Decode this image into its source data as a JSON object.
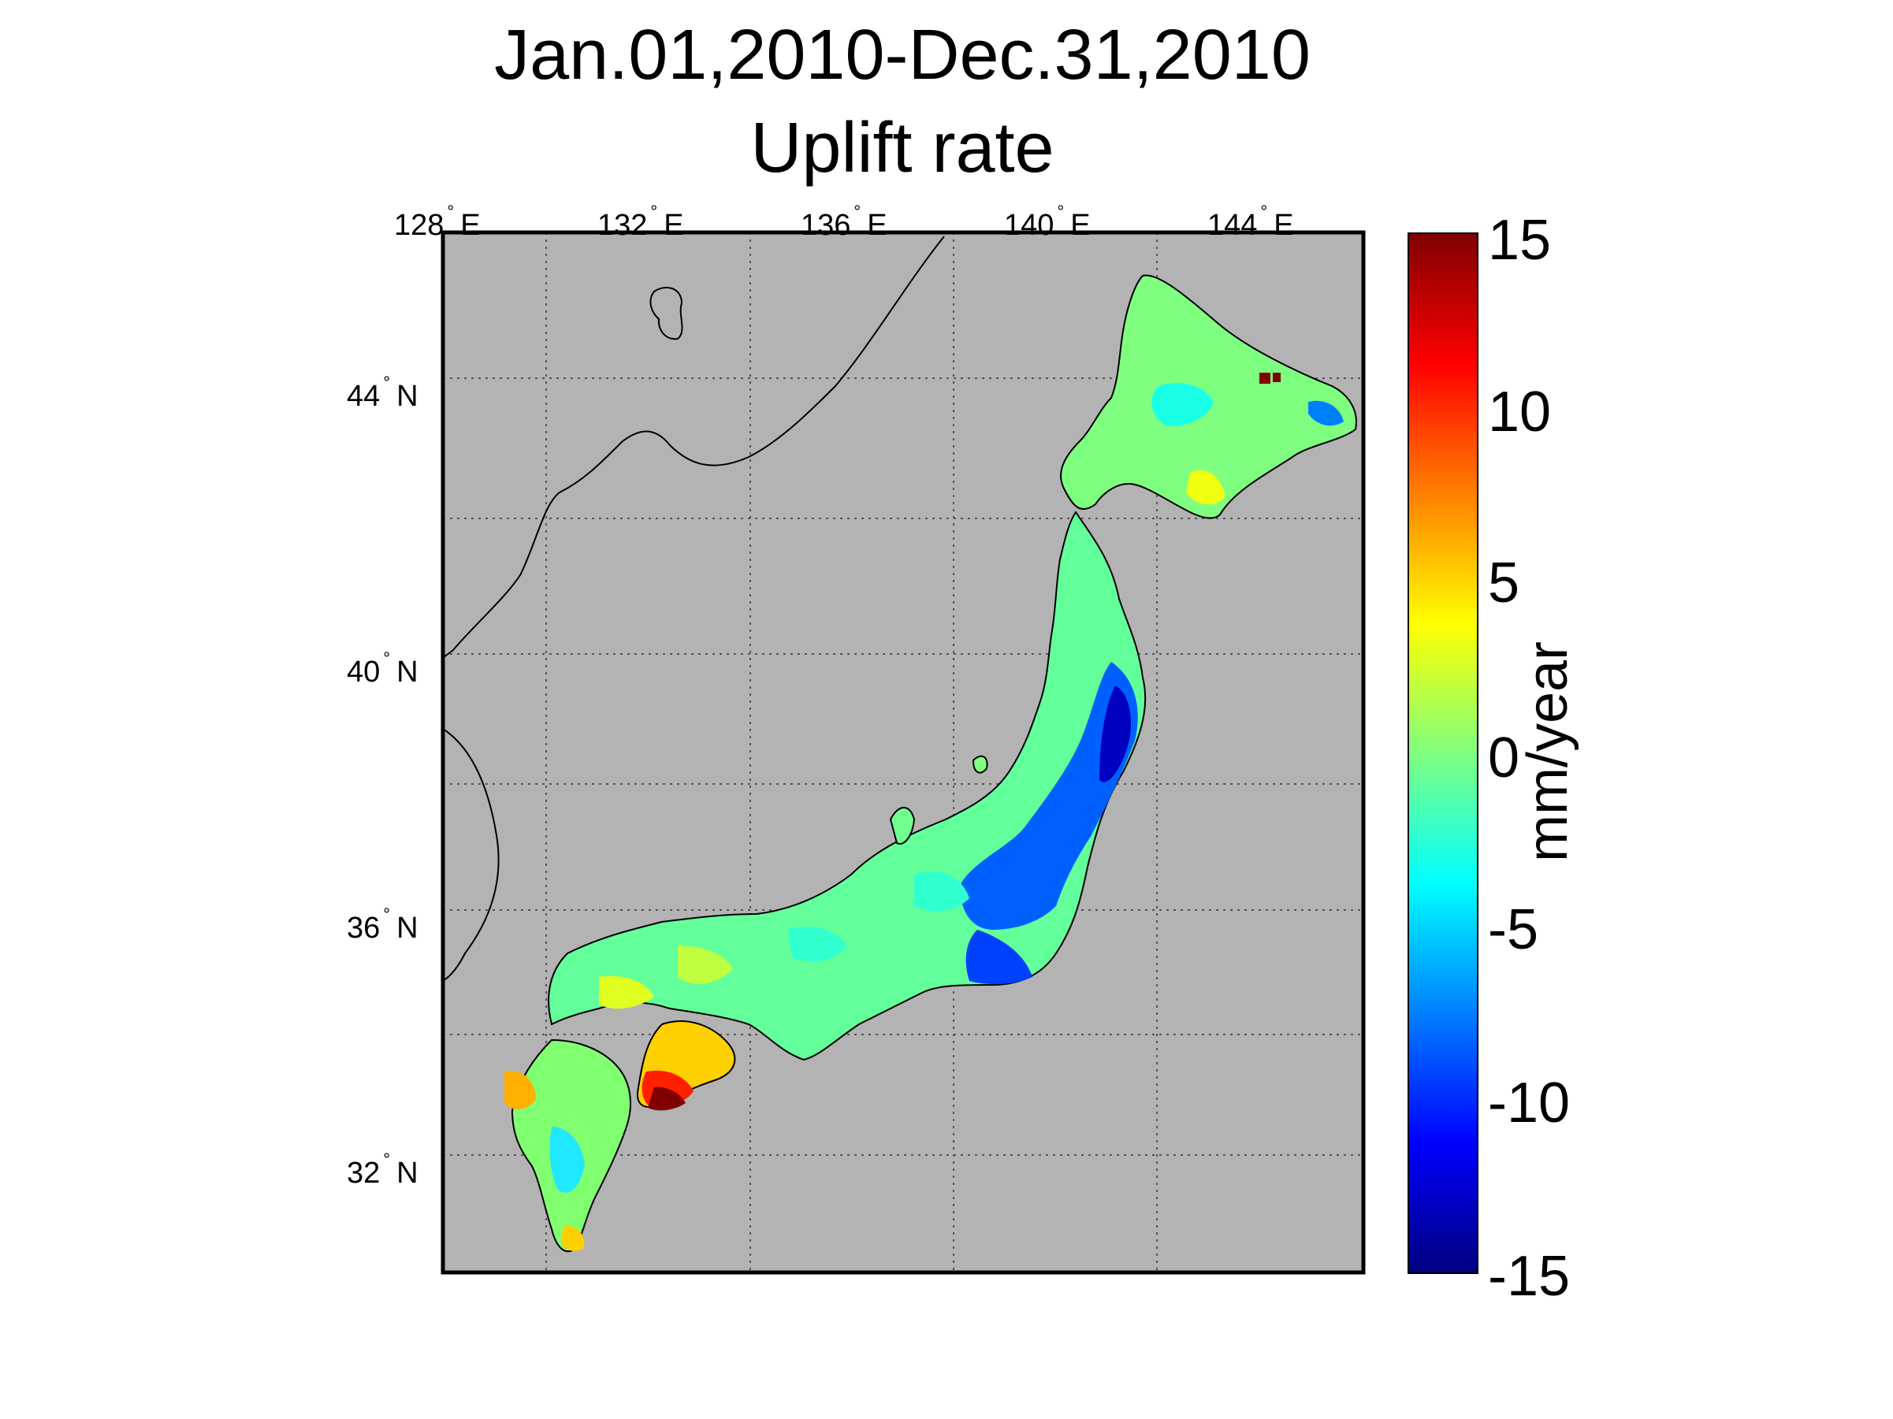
{
  "title": {
    "line1": "Jan.01,2010-Dec.31,2010",
    "line2": "Uplift rate"
  },
  "lon_ticks": [
    {
      "value": 128,
      "label": "128",
      "hemi": "E"
    },
    {
      "value": 132,
      "label": "132",
      "hemi": "E"
    },
    {
      "value": 136,
      "label": "136",
      "hemi": "E"
    },
    {
      "value": 140,
      "label": "140",
      "hemi": "E"
    },
    {
      "value": 144,
      "label": "144",
      "hemi": "E"
    }
  ],
  "lat_ticks": [
    {
      "value": 44,
      "label": "44",
      "hemi": "N"
    },
    {
      "value": 40,
      "label": "40",
      "hemi": "N"
    },
    {
      "value": 36,
      "label": "36",
      "hemi": "N"
    },
    {
      "value": 32,
      "label": "32",
      "hemi": "N"
    }
  ],
  "colorbar": {
    "unit": "mm/year",
    "range": [
      -15,
      15
    ],
    "ticks": [
      "15",
      "10",
      "5",
      "0",
      "-5",
      "-10",
      "-15"
    ],
    "colormap": "jet"
  },
  "colors": {
    "ocean": "#b3b3b3",
    "coastline": "#000000",
    "grid": "#555555"
  },
  "map_extent": {
    "lon": [
      128,
      146
    ],
    "lat": [
      30,
      46
    ]
  }
}
